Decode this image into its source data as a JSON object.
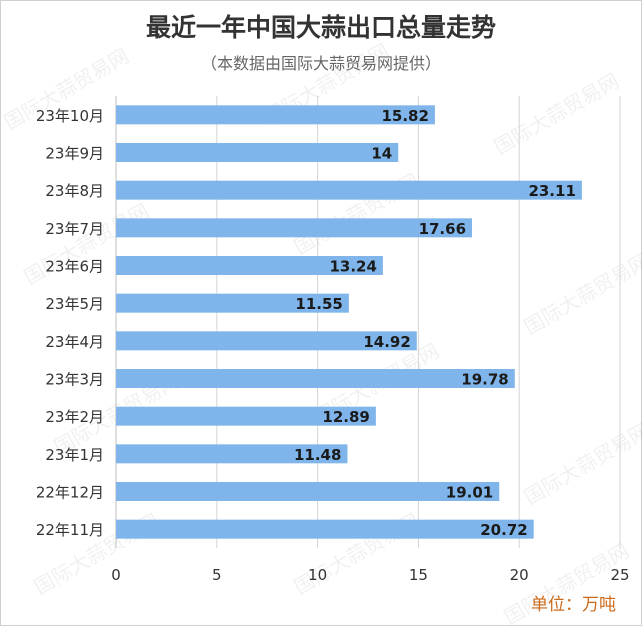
{
  "chart_data": {
    "type": "bar",
    "orientation": "horizontal",
    "title": "最近一年中国大蒜出口总量走势",
    "subtitle": "（本数据由国际大蒜贸易网提供）",
    "unit": "单位：万吨",
    "categories": [
      "23年10月",
      "23年9月",
      "23年8月",
      "23年7月",
      "23年6月",
      "23年5月",
      "23年4月",
      "23年3月",
      "23年2月",
      "23年1月",
      "22年12月",
      "22年11月"
    ],
    "values": [
      15.82,
      14,
      23.11,
      17.66,
      13.24,
      11.55,
      14.92,
      19.78,
      12.89,
      11.48,
      19.01,
      20.72
    ],
    "value_labels": [
      "15.82",
      "14",
      "23.11",
      "17.66",
      "13.24",
      "11.55",
      "14.92",
      "19.78",
      "12.89",
      "11.48",
      "19.01",
      "20.72"
    ],
    "xticks": [
      "0",
      "5",
      "10",
      "15",
      "20",
      "25"
    ],
    "xlim": [
      0,
      25
    ],
    "grid": true,
    "bar_color": "#7fb5ea",
    "grid_color": "#d5d5d5",
    "watermark": "国际大蒜贸易网"
  }
}
